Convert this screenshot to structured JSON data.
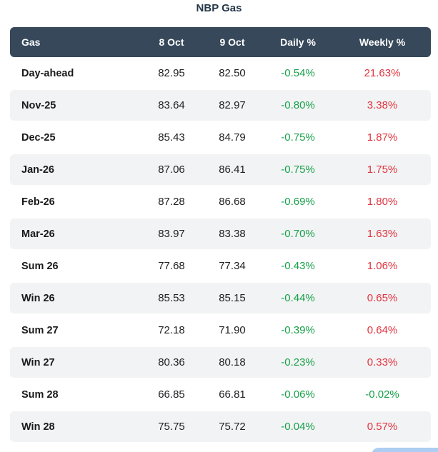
{
  "title": "NBP Gas",
  "chart_data": {
    "type": "table",
    "title": "NBP Gas",
    "columns": [
      "Gas",
      "8 Oct",
      "9 Oct",
      "Daily %",
      "Weekly %"
    ],
    "rows": [
      {
        "gas": "Day-ahead",
        "oct8": "82.95",
        "oct9": "82.50",
        "daily": "-0.54%",
        "weekly": "21.63%"
      },
      {
        "gas": "Nov-25",
        "oct8": "83.64",
        "oct9": "82.97",
        "daily": "-0.80%",
        "weekly": "3.38%"
      },
      {
        "gas": "Dec-25",
        "oct8": "85.43",
        "oct9": "84.79",
        "daily": "-0.75%",
        "weekly": "1.87%"
      },
      {
        "gas": "Jan-26",
        "oct8": "87.06",
        "oct9": "86.41",
        "daily": "-0.75%",
        "weekly": "1.75%"
      },
      {
        "gas": "Feb-26",
        "oct8": "87.28",
        "oct9": "86.68",
        "daily": "-0.69%",
        "weekly": "1.80%"
      },
      {
        "gas": "Mar-26",
        "oct8": "83.97",
        "oct9": "83.38",
        "daily": "-0.70%",
        "weekly": "1.63%"
      },
      {
        "gas": "Sum 26",
        "oct8": "77.68",
        "oct9": "77.34",
        "daily": "-0.43%",
        "weekly": "1.06%"
      },
      {
        "gas": "Win 26",
        "oct8": "85.53",
        "oct9": "85.15",
        "daily": "-0.44%",
        "weekly": "0.65%"
      },
      {
        "gas": "Sum 27",
        "oct8": "72.18",
        "oct9": "71.90",
        "daily": "-0.39%",
        "weekly": "0.64%"
      },
      {
        "gas": "Win 27",
        "oct8": "80.36",
        "oct9": "80.18",
        "daily": "-0.23%",
        "weekly": "0.33%"
      },
      {
        "gas": "Sum 28",
        "oct8": "66.85",
        "oct9": "66.81",
        "daily": "-0.06%",
        "weekly": "-0.02%"
      },
      {
        "gas": "Win 28",
        "oct8": "75.75",
        "oct9": "75.72",
        "daily": "-0.04%",
        "weekly": "0.57%"
      }
    ],
    "layout": {
      "striped_rows": true,
      "header_position": "top"
    }
  },
  "colors": {
    "header_bg": "#36485a",
    "header_text": "#ffffff",
    "stripe_bg": "#f2f3f4",
    "negative_value": "#18a04a",
    "positive_value": "#e0343f",
    "title_text": "#24384a",
    "float_button": "#aecdf2"
  }
}
